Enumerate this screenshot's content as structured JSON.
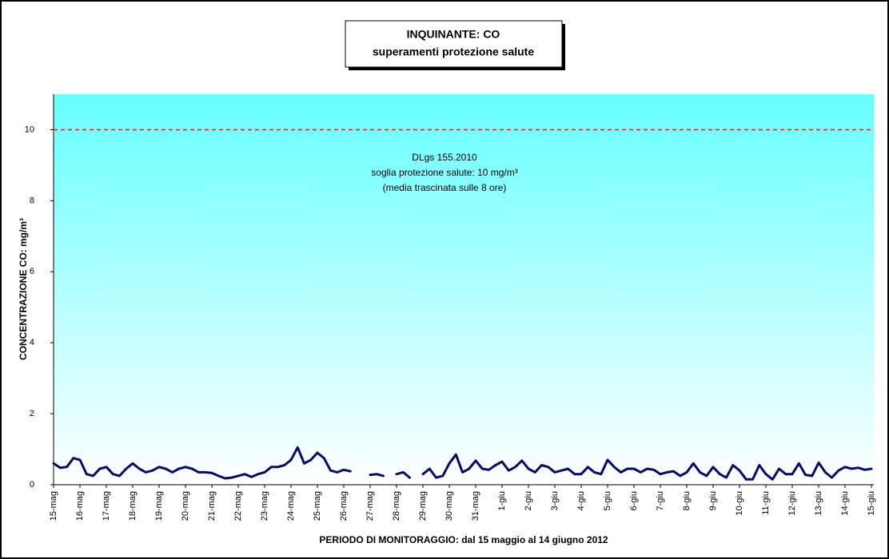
{
  "chart_data": {
    "type": "line",
    "title": "INQUINANTE: CO",
    "subtitle": "superamenti protezione salute",
    "y_label": "CONCENTRAZIONE CO: mg/m³",
    "x_label": "PERIODO DI MONITORAGGIO: dal 15 maggio al 14 giugno 2012",
    "annotations": [
      "DLgs 155.2010",
      "soglia protezione salute: 10 mg/m³",
      "(media trascinata sulle 8 ore)"
    ],
    "threshold": 10,
    "threshold_color": "#e02020",
    "color": "#0a0a6e",
    "xlim": [
      0,
      31
    ],
    "ylim": [
      0,
      11
    ],
    "yticks": [
      0,
      2,
      4,
      6,
      8,
      10
    ],
    "xticks": [
      {
        "value": 0,
        "label": "15-mag"
      },
      {
        "value": 1,
        "label": "16-mag"
      },
      {
        "value": 2,
        "label": "17-mag"
      },
      {
        "value": 3,
        "label": "18-mag"
      },
      {
        "value": 4,
        "label": "19-mag"
      },
      {
        "value": 5,
        "label": "20-mag"
      },
      {
        "value": 6,
        "label": "21-mag"
      },
      {
        "value": 7,
        "label": "22-mag"
      },
      {
        "value": 8,
        "label": "23-mag"
      },
      {
        "value": 9,
        "label": "24-mag"
      },
      {
        "value": 10,
        "label": "25-mag"
      },
      {
        "value": 11,
        "label": "26-mag"
      },
      {
        "value": 12,
        "label": "27-mag"
      },
      {
        "value": 13,
        "label": "28-mag"
      },
      {
        "value": 14,
        "label": "29-mag"
      },
      {
        "value": 15,
        "label": "30-mag"
      },
      {
        "value": 16,
        "label": "31-mag"
      },
      {
        "value": 17,
        "label": "1-giu"
      },
      {
        "value": 18,
        "label": "2-giu"
      },
      {
        "value": 19,
        "label": "3-giu"
      },
      {
        "value": 20,
        "label": "4-giu"
      },
      {
        "value": 21,
        "label": "5-giu"
      },
      {
        "value": 22,
        "label": "6-giu"
      },
      {
        "value": 23,
        "label": "7-giu"
      },
      {
        "value": 24,
        "label": "8-giu"
      },
      {
        "value": 25,
        "label": "9-giu"
      },
      {
        "value": 26,
        "label": "10-giu"
      },
      {
        "value": 27,
        "label": "11-giu"
      },
      {
        "value": 28,
        "label": "12-giu"
      },
      {
        "value": 29,
        "label": "13-giu"
      },
      {
        "value": 30,
        "label": "14-giu"
      },
      {
        "value": 31,
        "label": "15-giu"
      }
    ],
    "x": [
      0,
      0.25,
      0.5,
      0.75,
      1,
      1.25,
      1.5,
      1.75,
      2,
      2.25,
      2.5,
      2.75,
      3,
      3.25,
      3.5,
      3.75,
      4,
      4.25,
      4.5,
      4.75,
      5,
      5.25,
      5.5,
      5.75,
      6,
      6.25,
      6.5,
      6.75,
      7,
      7.25,
      7.5,
      7.75,
      8,
      8.25,
      8.5,
      8.75,
      9,
      9.25,
      9.5,
      9.75,
      10,
      10.25,
      10.5,
      10.75,
      11,
      11.25,
      11.5,
      11.75,
      12,
      12.25,
      12.5,
      12.75,
      13,
      13.25,
      13.5,
      13.75,
      14,
      14.25,
      14.5,
      14.75,
      15,
      15.25,
      15.5,
      15.75,
      16,
      16.25,
      16.5,
      16.75,
      17,
      17.25,
      17.5,
      17.75,
      18,
      18.25,
      18.5,
      18.75,
      19,
      19.25,
      19.5,
      19.75,
      20,
      20.25,
      20.5,
      20.75,
      21,
      21.25,
      21.5,
      21.75,
      22,
      22.25,
      22.5,
      22.75,
      23,
      23.25,
      23.5,
      23.75,
      24,
      24.25,
      24.5,
      24.75,
      25,
      25.25,
      25.5,
      25.75,
      26,
      26.25,
      26.5,
      26.75,
      27,
      27.25,
      27.5,
      27.75,
      28,
      28.25,
      28.5,
      28.75,
      29,
      29.25,
      29.5,
      29.75,
      30,
      30.25,
      30.5,
      30.75,
      31
    ],
    "values": [
      0.6,
      0.48,
      0.5,
      0.75,
      0.7,
      0.3,
      0.25,
      0.45,
      0.5,
      0.3,
      0.25,
      0.45,
      0.6,
      0.45,
      0.35,
      0.4,
      0.5,
      0.45,
      0.35,
      0.45,
      0.5,
      0.45,
      0.35,
      0.35,
      0.33,
      0.25,
      0.18,
      0.2,
      0.25,
      0.3,
      0.22,
      0.3,
      0.35,
      0.5,
      0.5,
      0.55,
      0.7,
      1.05,
      0.6,
      0.7,
      0.9,
      0.75,
      0.4,
      0.35,
      0.42,
      0.38,
      null,
      null,
      0.28,
      0.3,
      0.25,
      null,
      0.3,
      0.35,
      0.2,
      null,
      0.3,
      0.45,
      0.2,
      0.25,
      0.6,
      0.85,
      0.35,
      0.45,
      0.68,
      0.45,
      0.42,
      0.55,
      0.65,
      0.4,
      0.5,
      0.68,
      0.45,
      0.35,
      0.55,
      0.5,
      0.35,
      0.4,
      0.45,
      0.3,
      0.3,
      0.5,
      0.35,
      0.3,
      0.7,
      0.5,
      0.35,
      0.45,
      0.45,
      0.35,
      0.45,
      0.42,
      0.3,
      0.35,
      0.38,
      0.25,
      0.35,
      0.6,
      0.35,
      0.25,
      0.5,
      0.3,
      0.2,
      0.55,
      0.4,
      0.15,
      0.15,
      0.55,
      0.3,
      0.15,
      0.45,
      0.3,
      0.3,
      0.6,
      0.28,
      0.25,
      0.62,
      0.35,
      0.2,
      0.4,
      0.5,
      0.45,
      0.48,
      0.42,
      0.45
    ]
  }
}
